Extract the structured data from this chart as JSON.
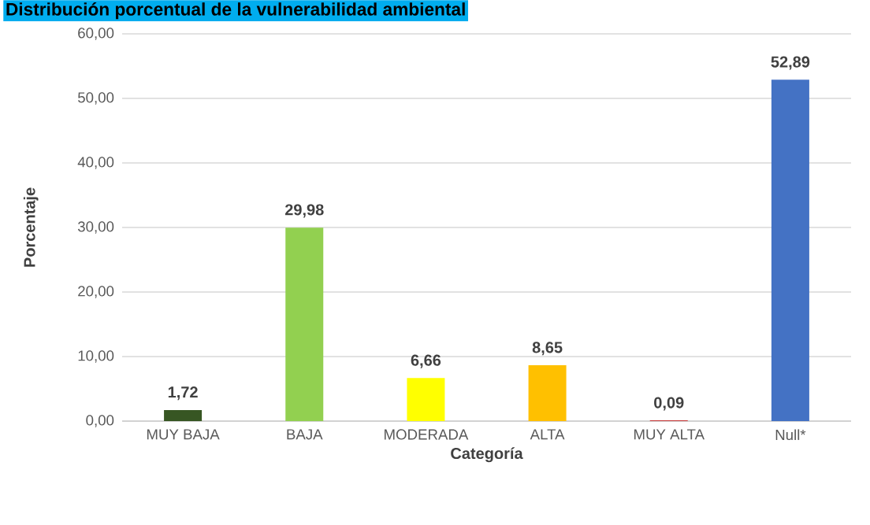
{
  "chart_data": {
    "type": "bar",
    "title": "Distribución porcentual de la vulnerabilidad ambiental",
    "xlabel": "Categoría",
    "ylabel": "Porcentaje",
    "categories": [
      "MUY BAJA",
      "BAJA",
      "MODERADA",
      "ALTA",
      "MUY ALTA",
      "Null*"
    ],
    "values": [
      1.72,
      29.98,
      6.66,
      8.65,
      0.09,
      52.89
    ],
    "value_labels": [
      "1,72",
      "29,98",
      "6,66",
      "8,65",
      "0,09",
      "52,89"
    ],
    "colors": [
      "#375623",
      "#92d050",
      "#ffff00",
      "#ffc000",
      "#c00000",
      "#4472c4"
    ],
    "ylim": [
      0,
      60
    ],
    "yticks": [
      {
        "value": 0,
        "label": "0,00"
      },
      {
        "value": 10,
        "label": "10,00"
      },
      {
        "value": 20,
        "label": "20,00"
      },
      {
        "value": 30,
        "label": "30,00"
      },
      {
        "value": 40,
        "label": "40,00"
      },
      {
        "value": 50,
        "label": "50,00"
      },
      {
        "value": 60,
        "label": "60,00"
      }
    ],
    "grid": "y"
  }
}
